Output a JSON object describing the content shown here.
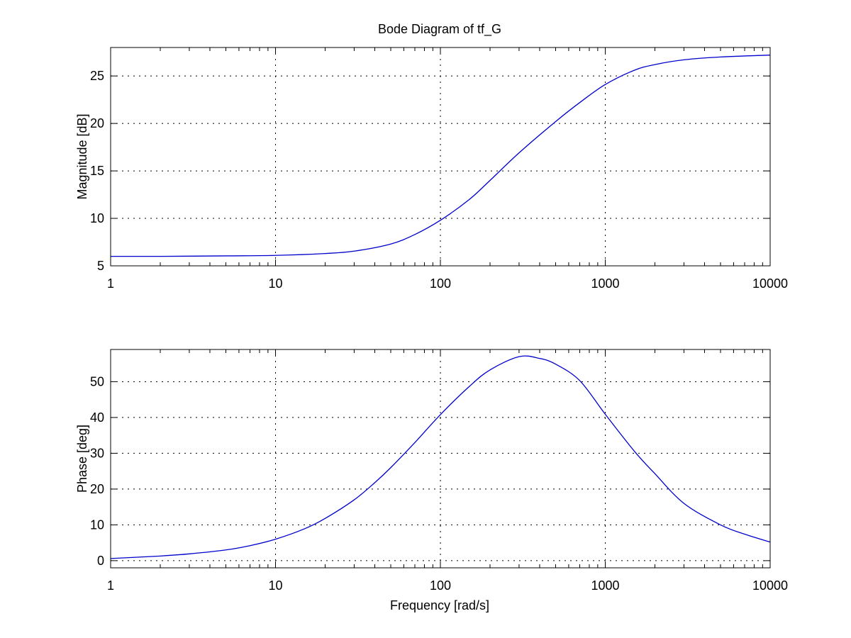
{
  "title": "Bode Diagram of tf_G",
  "colors": {
    "line": "#0000cc",
    "axes": "#000000",
    "grid": "#000000",
    "background": "#ffffff"
  },
  "chart_data": [
    {
      "type": "line",
      "xscale": "log",
      "grid": true,
      "xlim": [
        1,
        10000
      ],
      "ylim": [
        5,
        28
      ],
      "xticks": [
        1,
        10,
        100,
        1000,
        10000
      ],
      "xtick_labels": [
        "1",
        "10",
        "100",
        "1000",
        "10000"
      ],
      "yticks": [
        5,
        10,
        15,
        20,
        25
      ],
      "ytick_labels": [
        "5",
        "10",
        "15",
        "20",
        "25"
      ],
      "ylabel": "Magnitude [dB]",
      "xlabel": "",
      "series": [
        {
          "x": [
            1,
            2,
            5,
            10,
            20,
            30,
            50,
            70,
            100,
            150,
            200,
            300,
            500,
            700,
            1000,
            1500,
            2000,
            3000,
            5000,
            10000
          ],
          "y": [
            6.0,
            6.0,
            6.05,
            6.1,
            6.3,
            6.55,
            7.3,
            8.3,
            9.8,
            12.0,
            14.0,
            16.9,
            20.2,
            22.2,
            24.1,
            25.6,
            26.2,
            26.7,
            27.0,
            27.2
          ]
        }
      ]
    },
    {
      "type": "line",
      "xscale": "log",
      "grid": true,
      "xlim": [
        1,
        10000
      ],
      "ylim": [
        -2,
        59
      ],
      "xticks": [
        1,
        10,
        100,
        1000,
        10000
      ],
      "xtick_labels": [
        "1",
        "10",
        "100",
        "1000",
        "10000"
      ],
      "yticks": [
        0,
        10,
        20,
        30,
        40,
        50
      ],
      "ytick_labels": [
        "0",
        "10",
        "20",
        "30",
        "40",
        "50"
      ],
      "ylabel": "Phase [deg]",
      "xlabel": "Frequency [rad/s]",
      "series": [
        {
          "x": [
            1,
            2,
            3,
            5,
            7,
            10,
            15,
            20,
            30,
            40,
            50,
            70,
            100,
            150,
            200,
            300,
            400,
            500,
            700,
            1000,
            1500,
            2000,
            3000,
            5000,
            7000,
            10000
          ],
          "y": [
            0.6,
            1.3,
            1.9,
            3.0,
            4.2,
            6.0,
            8.9,
            11.8,
            17.0,
            21.8,
            26.0,
            33.0,
            40.8,
            48.7,
            53.3,
            57.0,
            56.5,
            54.9,
            50.3,
            40.9,
            30.6,
            24.3,
            16.0,
            10.0,
            7.4,
            5.2
          ]
        }
      ]
    }
  ]
}
